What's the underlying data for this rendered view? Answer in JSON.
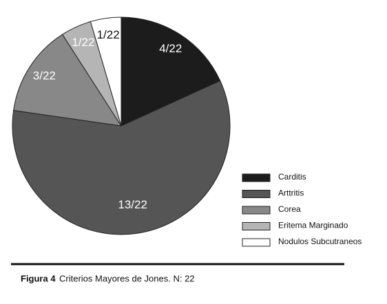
{
  "chart_data": {
    "type": "pie",
    "categories": [
      "Carditis",
      "Arttritis",
      "Corea",
      "Eritema Marginado",
      "Nodulos Subcutraneos"
    ],
    "values": [
      4,
      13,
      3,
      1,
      1
    ],
    "value_labels": [
      "4/22",
      "13/22",
      "3/22",
      "1/22",
      "1/22"
    ],
    "colors": [
      "#1c1c1c",
      "#555555",
      "#888888",
      "#b5b5b5",
      "#ffffff"
    ],
    "legend": "right"
  },
  "caption": {
    "label": "Figura 4",
    "text": "Criterios Mayores de Jones. N: 22"
  }
}
